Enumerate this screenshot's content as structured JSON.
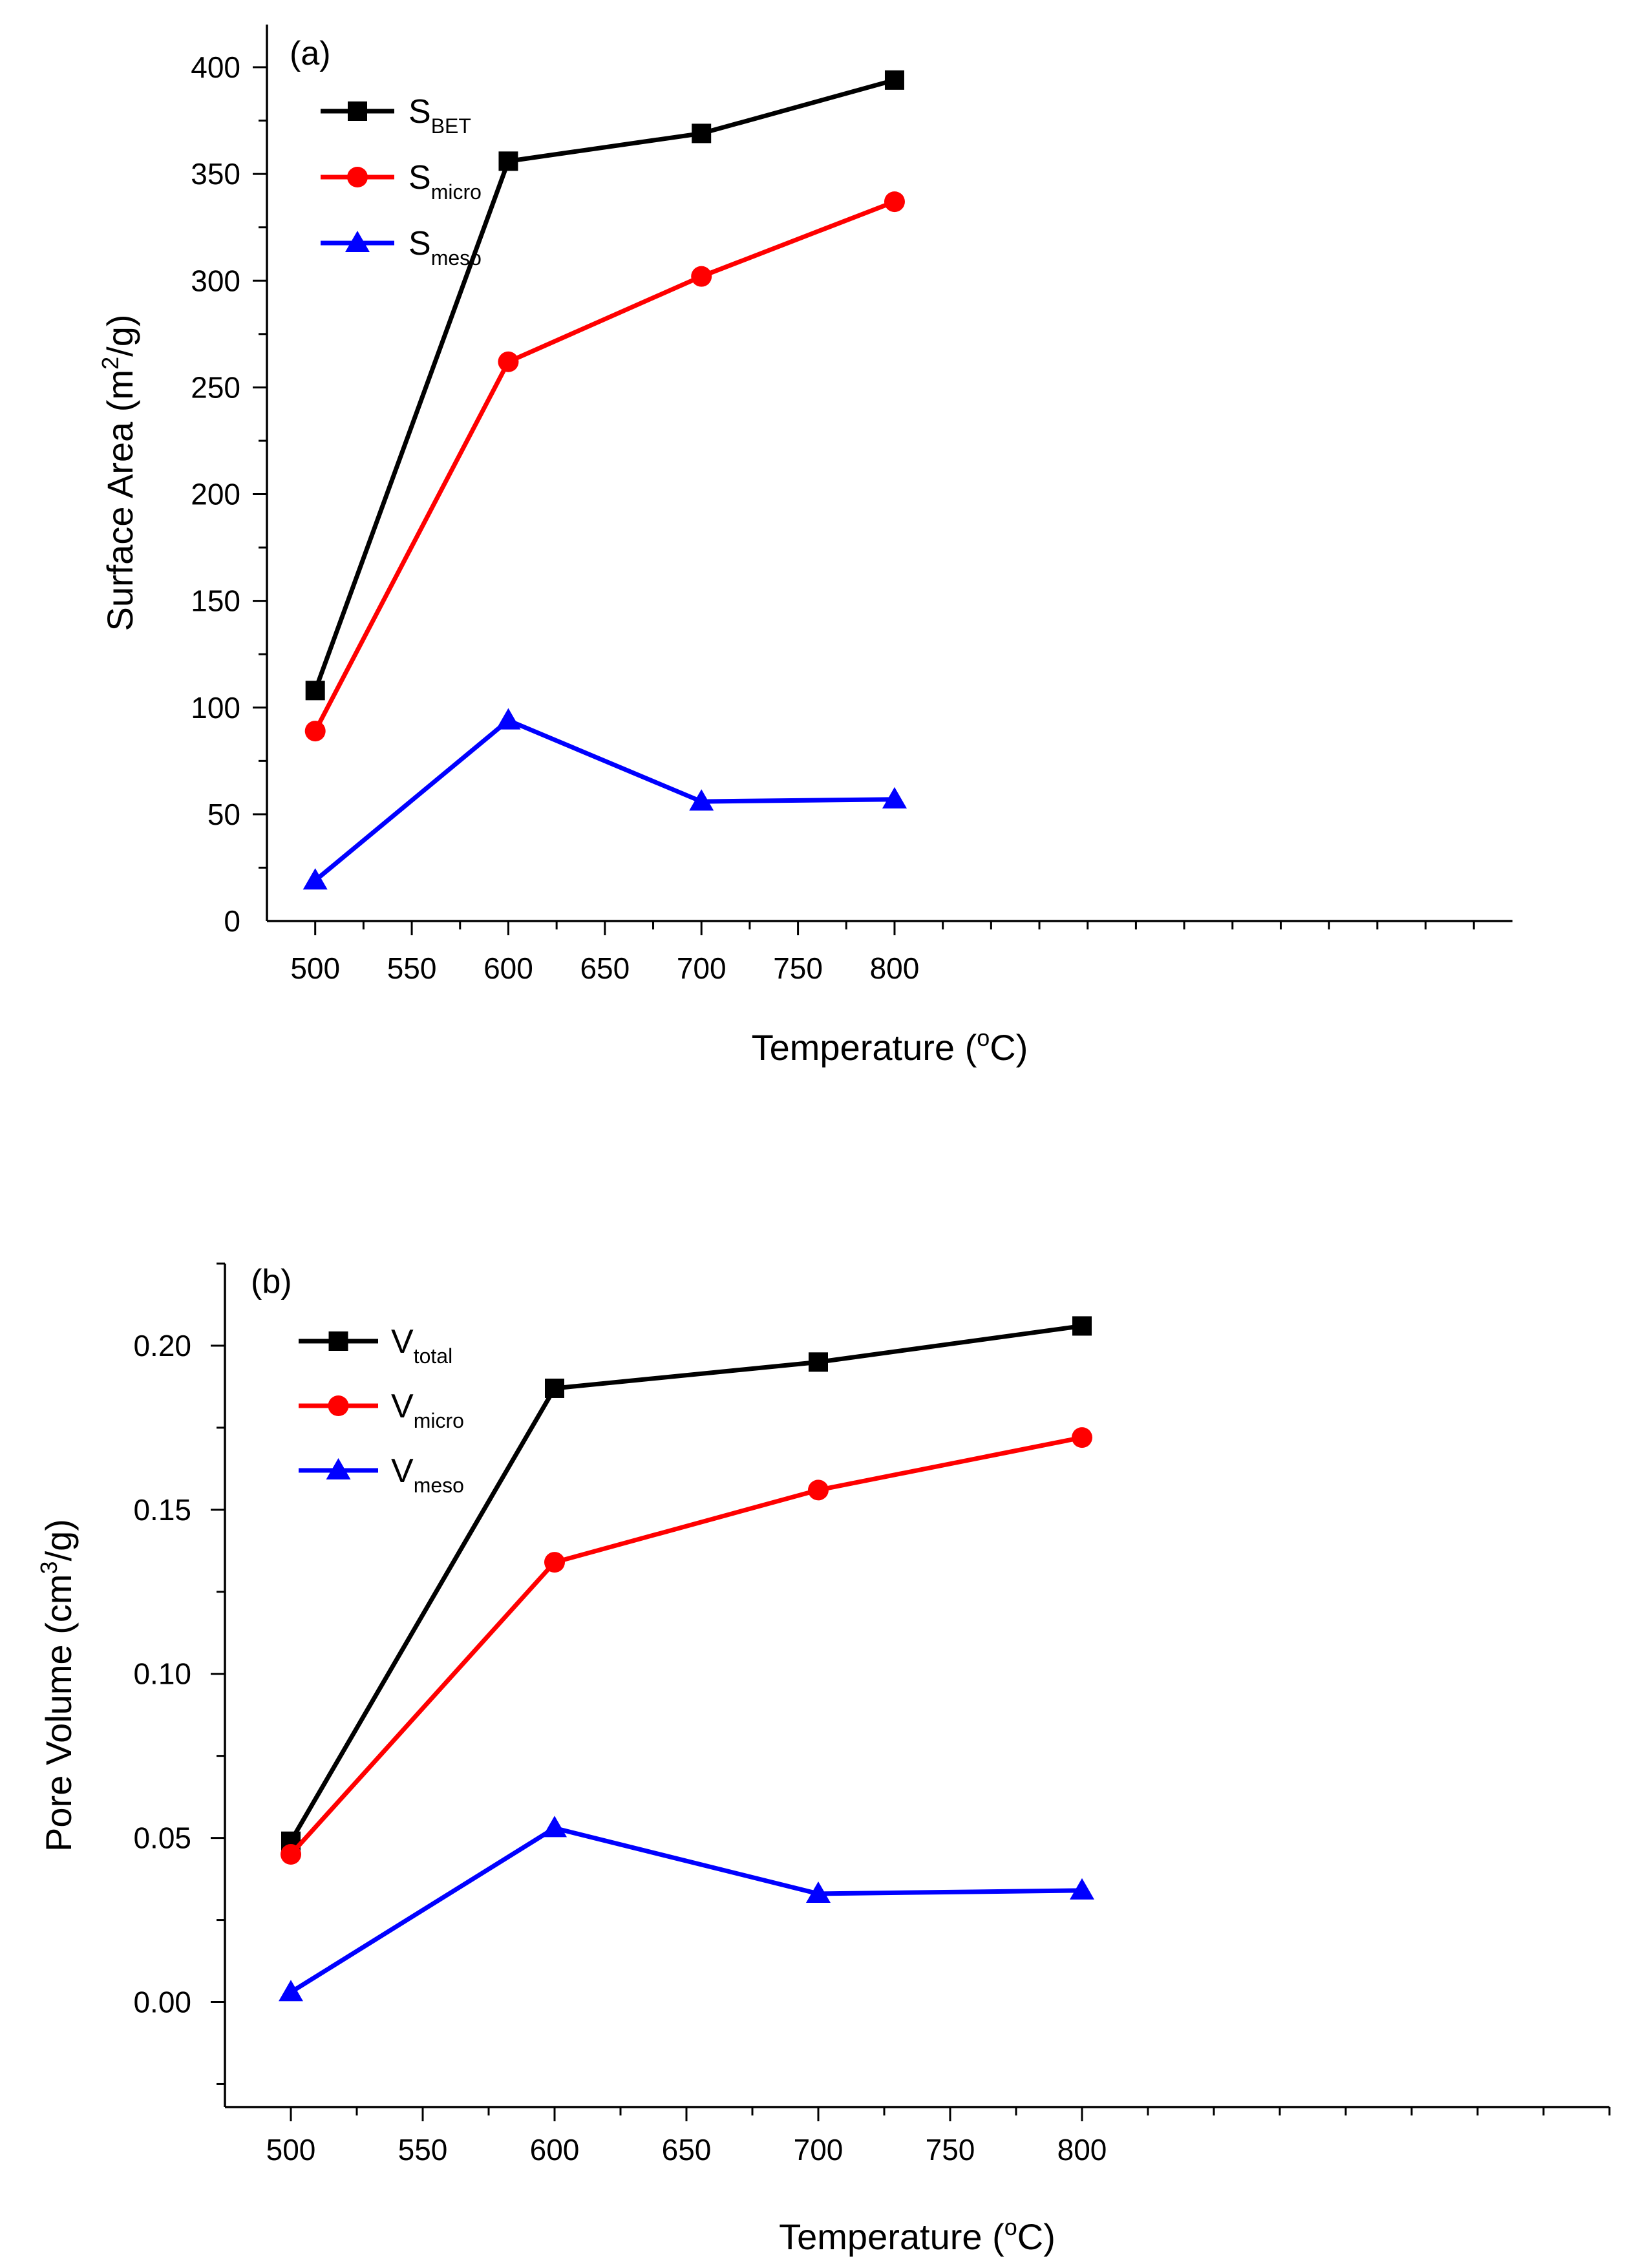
{
  "chart_data": [
    {
      "type": "line",
      "panel_label": "(a)",
      "x": [
        500,
        600,
        700,
        800
      ],
      "xlabel": {
        "pre": "Temperature (",
        "sup": "o",
        "post": "C)"
      },
      "ylabel": {
        "pre": "Surface Area (m",
        "sup": "2",
        "post": "/g)"
      },
      "xlim": [
        475,
        1120
      ],
      "ylim": [
        0,
        420
      ],
      "xticks": [
        500,
        550,
        600,
        650,
        700,
        750,
        800
      ],
      "xtick_labels": [
        "500",
        "550",
        "600",
        "650",
        "700",
        "750",
        "800"
      ],
      "yticks": [
        0,
        50,
        100,
        150,
        200,
        250,
        300,
        350,
        400
      ],
      "ytick_labels": [
        "0",
        "50",
        "100",
        "150",
        "200",
        "250",
        "300",
        "350",
        "400"
      ],
      "legend_position": "top-left",
      "series": [
        {
          "name": "S",
          "sub": "BET",
          "values": [
            108,
            356,
            369,
            394
          ],
          "color": "#000000",
          "marker": "square"
        },
        {
          "name": "S",
          "sub": "micro",
          "values": [
            89,
            262,
            302,
            337
          ],
          "color": "#ff0000",
          "marker": "circle"
        },
        {
          "name": "S",
          "sub": "meso",
          "values": [
            19,
            94,
            56,
            57
          ],
          "color": "#0000ff",
          "marker": "triangle"
        }
      ]
    },
    {
      "type": "line",
      "panel_label": "(b)",
      "x": [
        500,
        600,
        700,
        800
      ],
      "xlabel": {
        "pre": "Temperature (",
        "sup": "o",
        "post": "C)"
      },
      "ylabel": {
        "pre": "Pore Volume (cm",
        "sup": "3",
        "post": "/g)"
      },
      "xlim": [
        475,
        1000
      ],
      "ylim": [
        -0.032,
        0.225
      ],
      "xticks": [
        500,
        550,
        600,
        650,
        700,
        750,
        800
      ],
      "xtick_labels": [
        "500",
        "550",
        "600",
        "650",
        "700",
        "750",
        "800"
      ],
      "yticks": [
        0.0,
        0.05,
        0.1,
        0.15,
        0.2
      ],
      "ytick_labels": [
        "0.00",
        "0.05",
        "0.10",
        "0.15",
        "0.20"
      ],
      "legend_position": "top-left",
      "series": [
        {
          "name": "V",
          "sub": "total",
          "values": [
            0.049,
            0.187,
            0.195,
            0.206
          ],
          "color": "#000000",
          "marker": "square"
        },
        {
          "name": "V",
          "sub": "micro",
          "values": [
            0.045,
            0.134,
            0.156,
            0.172
          ],
          "color": "#ff0000",
          "marker": "circle"
        },
        {
          "name": "V",
          "sub": "meso",
          "values": [
            0.003,
            0.053,
            0.033,
            0.034
          ],
          "color": "#0000ff",
          "marker": "triangle"
        }
      ]
    }
  ]
}
